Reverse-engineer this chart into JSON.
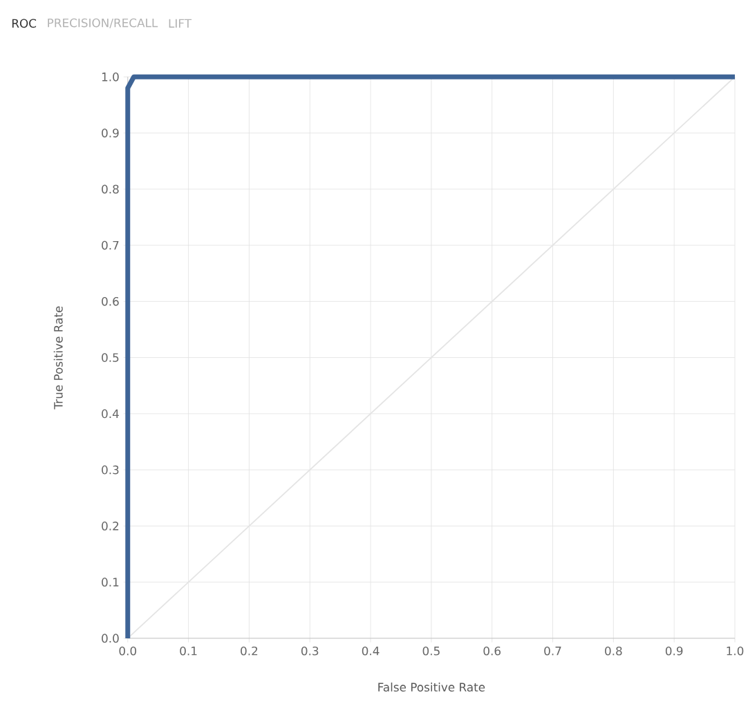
{
  "chart_data": {
    "type": "line",
    "title": "ROC",
    "annotations": [
      "PRECISION/RECALL",
      "LIFT"
    ],
    "xlabel": "False Positive Rate",
    "ylabel": "True Positive Rate",
    "xlim": [
      0,
      1
    ],
    "ylim": [
      0,
      1
    ],
    "xticks": [
      {
        "value": 0,
        "label": "0.0"
      },
      0.1,
      0.2,
      0.3,
      0.4,
      0.5,
      0.6,
      0.7,
      0.8,
      0.9,
      {
        "value": 1,
        "label": "1.0"
      }
    ],
    "yticks": [
      {
        "value": 0,
        "label": "0.0"
      },
      0.1,
      0.2,
      0.3,
      0.4,
      0.5,
      0.6,
      0.7,
      0.8,
      0.9,
      {
        "value": 1,
        "label": "1.0"
      }
    ],
    "grid": true,
    "series": [
      {
        "color": "#3e6496",
        "x": [
          0,
          0,
          0.01,
          1
        ],
        "values": [
          0,
          0.98,
          1,
          1
        ]
      },
      {
        "color": "#e4e4e4",
        "x": [
          0,
          1
        ],
        "values": [
          0,
          1
        ]
      }
    ]
  }
}
